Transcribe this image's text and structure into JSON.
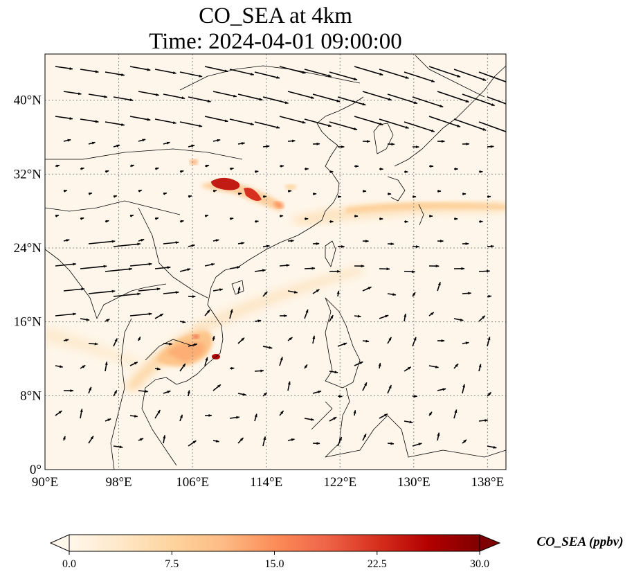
{
  "title_line1": "CO_SEA at 4km",
  "title_line2": "Time: 2024-04-01 09:00:00",
  "map": {
    "lon_range": [
      90,
      140
    ],
    "lat_range": [
      0,
      45
    ],
    "lon_ticks": [
      {
        "value": 90,
        "label": "90°E"
      },
      {
        "value": 98,
        "label": "98°E"
      },
      {
        "value": 106,
        "label": "106°E"
      },
      {
        "value": 114,
        "label": "114°E"
      },
      {
        "value": 122,
        "label": "122°E"
      },
      {
        "value": 130,
        "label": "130°E"
      },
      {
        "value": 138,
        "label": "138°E"
      }
    ],
    "lat_ticks": [
      {
        "value": 0,
        "label": "0°"
      },
      {
        "value": 8,
        "label": "8°N"
      },
      {
        "value": 16,
        "label": "16°N"
      },
      {
        "value": 24,
        "label": "24°N"
      },
      {
        "value": 32,
        "label": "32°N"
      },
      {
        "value": 40,
        "label": "40°N"
      }
    ],
    "gridlines": true,
    "field_background": "#fef6ea"
  },
  "colorbar": {
    "label": "CO_SEA (ppbv)",
    "min": 0,
    "max": 30,
    "ticks": [
      "0.0",
      "7.5",
      "15.0",
      "22.5",
      "30.0"
    ],
    "colormap": "OrRd",
    "extend": "both",
    "colors": [
      "#fff7ec",
      "#fee8c8",
      "#fdd49e",
      "#fdbb84",
      "#fc8d59",
      "#ef6548",
      "#d7301f",
      "#b30000",
      "#7f0000"
    ]
  }
}
